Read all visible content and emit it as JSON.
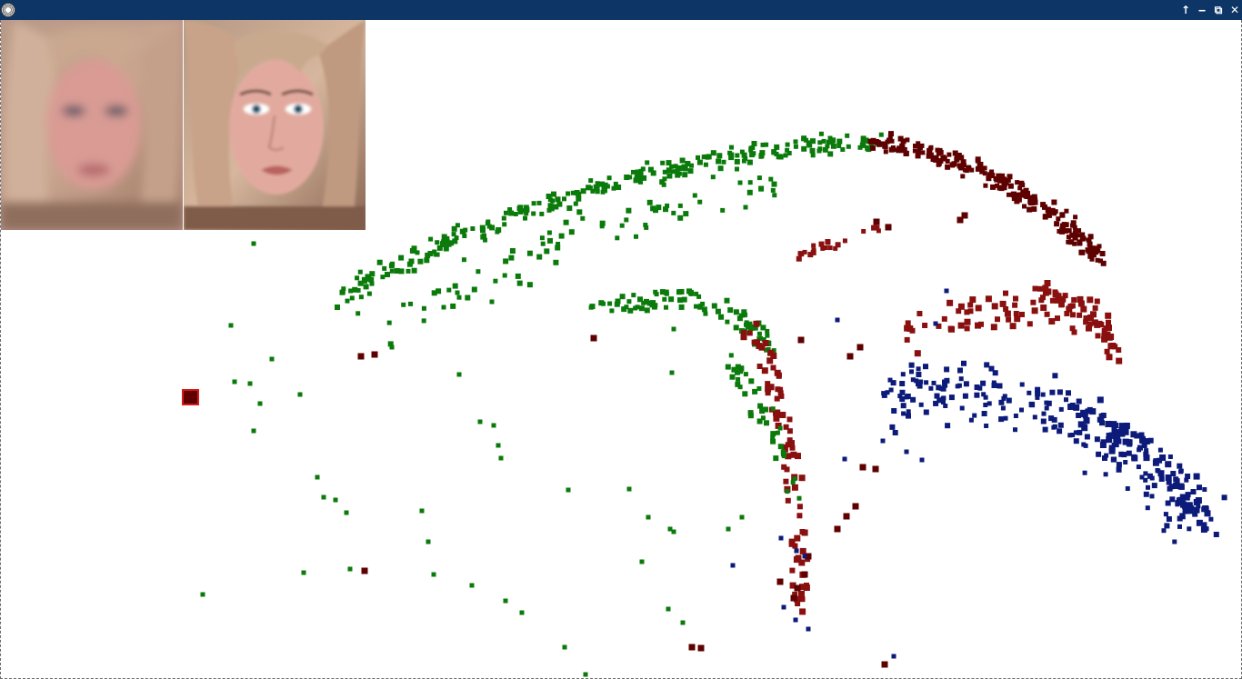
{
  "window": {
    "title": "",
    "controls": {
      "up_icon": "arrow-up-icon",
      "minimize_icon": "minimize-icon",
      "restore_icon": "restore-icon",
      "close_icon": "close-icon",
      "up_glyph": "↑",
      "minimize_glyph": "‒",
      "restore_glyph": "⧉",
      "close_glyph": "✕"
    },
    "titlebar_color": "#0d3566"
  },
  "thumbnails": [
    {
      "name": "blurred-face-thumbnail",
      "style": "blurred"
    },
    {
      "name": "sharp-face-thumbnail",
      "style": "sharp"
    }
  ],
  "scatter": {
    "colors": {
      "green": "#0a7a0a",
      "dark_red": "#5e0000",
      "red": "#8a0f0f",
      "blue": "#0c1a7a",
      "highlight": "#d41a1a"
    },
    "projection": "3d-perspective"
  }
}
